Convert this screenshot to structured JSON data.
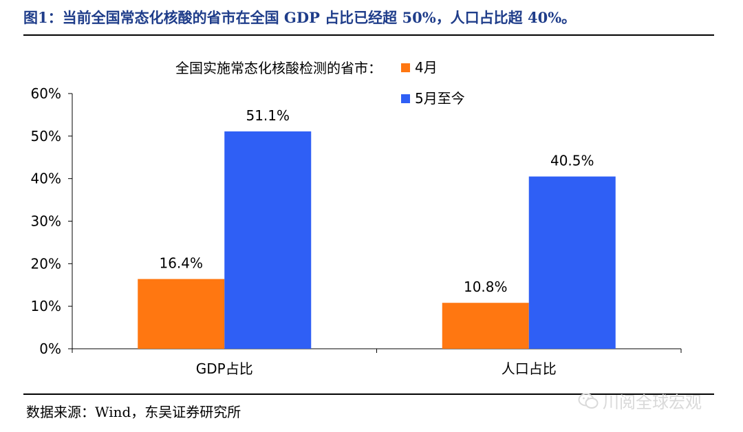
{
  "title": "图1：当前全国常态化核酸的省市在全国 GDP 占比已经超 50%，人口占比超 40%。",
  "source": "数据来源：Wind，东吴证券研究所",
  "watermark": {
    "text": "川阅全球宏观",
    "icon": "wechat-icon"
  },
  "colors": {
    "title": "#1f3d8a",
    "april": "#ff7711",
    "may": "#2f5ff5"
  },
  "chart_data": {
    "type": "bar",
    "categories": [
      "GDP占比",
      "人口占比"
    ],
    "legend_title": "全国实施常态化核酸检测的省市：",
    "series": [
      {
        "name": "4月",
        "values": [
          16.4,
          10.8
        ],
        "labels": [
          "16.4%",
          "10.8%"
        ]
      },
      {
        "name": "5月至今",
        "values": [
          51.1,
          40.5
        ],
        "labels": [
          "51.1%",
          "40.5%"
        ]
      }
    ],
    "ylim": [
      0,
      60
    ],
    "yticks": [
      "0%",
      "10%",
      "20%",
      "30%",
      "40%",
      "50%",
      "60%"
    ],
    "grid": false,
    "legend_position": "top-right"
  }
}
